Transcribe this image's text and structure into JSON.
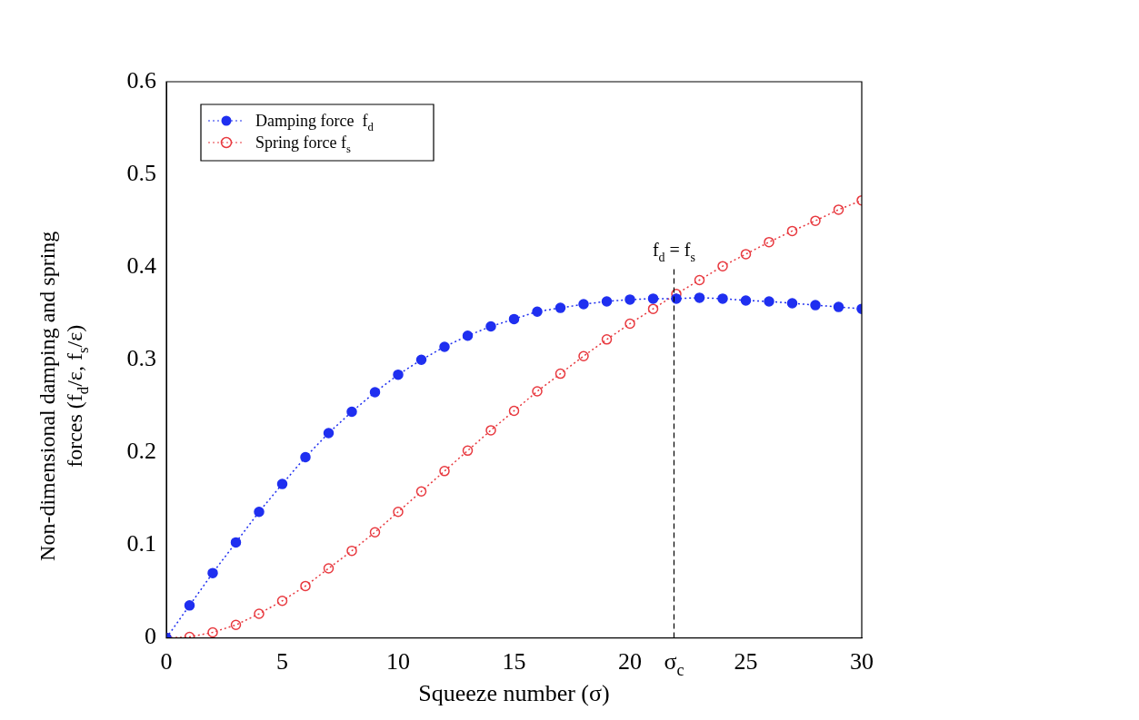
{
  "chart_data": {
    "type": "line",
    "xlabel": "Squeeze number (σ)",
    "ylabel": "Non-dimensional damping and spring forces (f$_{d}$/ε, f$_{s}$/ε)",
    "x": [
      0,
      1,
      2,
      3,
      4,
      5,
      6,
      7,
      8,
      9,
      10,
      11,
      12,
      13,
      14,
      15,
      16,
      17,
      18,
      19,
      20,
      21,
      22,
      23,
      24,
      25,
      26,
      27,
      28,
      29,
      30
    ],
    "series": [
      {
        "name": "Damping force  f$_{d}$",
        "color": "#1f2ff0",
        "values": [
          0,
          0.035,
          0.07,
          0.103,
          0.136,
          0.166,
          0.195,
          0.221,
          0.244,
          0.265,
          0.284,
          0.3,
          0.314,
          0.326,
          0.336,
          0.344,
          0.352,
          0.356,
          0.36,
          0.363,
          0.365,
          0.366,
          0.366,
          0.367,
          0.366,
          0.364,
          0.363,
          0.361,
          0.359,
          0.357,
          0.355
        ]
      },
      {
        "name": "Spring force f$_{s}$",
        "color": "#e8393f",
        "values": [
          0,
          0.001,
          0.006,
          0.014,
          0.026,
          0.04,
          0.056,
          0.075,
          0.094,
          0.114,
          0.136,
          0.158,
          0.18,
          0.202,
          0.224,
          0.245,
          0.266,
          0.285,
          0.304,
          0.322,
          0.339,
          0.355,
          0.371,
          0.386,
          0.401,
          0.414,
          0.427,
          0.439,
          0.45,
          0.462,
          0.472
        ]
      }
    ],
    "xlim": [
      0,
      30
    ],
    "xticks": [
      0,
      5,
      10,
      15,
      20,
      {
        "value": 21.9,
        "label": "σ$_{c}$"
      },
      25,
      30
    ],
    "ylim": [
      0,
      0.6
    ],
    "yticks": [
      0,
      0.1,
      0.2,
      0.3,
      0.4,
      0.5,
      0.6
    ],
    "ref_lines": [
      {
        "axis": "x",
        "value": 21.9,
        "label": "f$_{d}$ = f$_{s}$",
        "line_style": "dashed",
        "color": "#000000"
      }
    ],
    "legend": "top left",
    "marker": "circle",
    "line_style": "dotted",
    "grid": false
  }
}
